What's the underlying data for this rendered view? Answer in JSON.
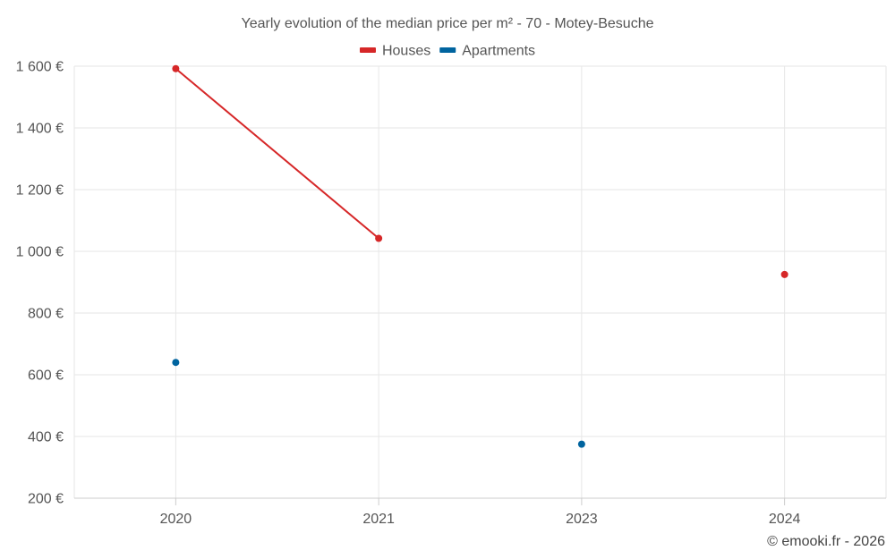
{
  "chart_data": {
    "type": "line",
    "title": "Yearly evolution of the median price per m² - 70 - Motey-Besuche",
    "categories": [
      "2020",
      "2021",
      "2023",
      "2024"
    ],
    "ylim": [
      200,
      1600
    ],
    "yticks": [
      200,
      400,
      600,
      800,
      1000,
      1200,
      1400,
      1600
    ],
    "ytick_labels": [
      "200 €",
      "400 €",
      "600 €",
      "800 €",
      "1 000 €",
      "1 200 €",
      "1 400 €",
      "1 600 €"
    ],
    "xlabel": "",
    "ylabel": "",
    "grid": true,
    "legend_position": "top-center",
    "series": [
      {
        "name": "Houses",
        "color": "#d62728",
        "values": [
          1592,
          1042,
          null,
          925
        ]
      },
      {
        "name": "Apartments",
        "color": "#00649f",
        "values": [
          640,
          null,
          375,
          null
        ]
      }
    ]
  },
  "credit": "© emooki.fr - 2026"
}
